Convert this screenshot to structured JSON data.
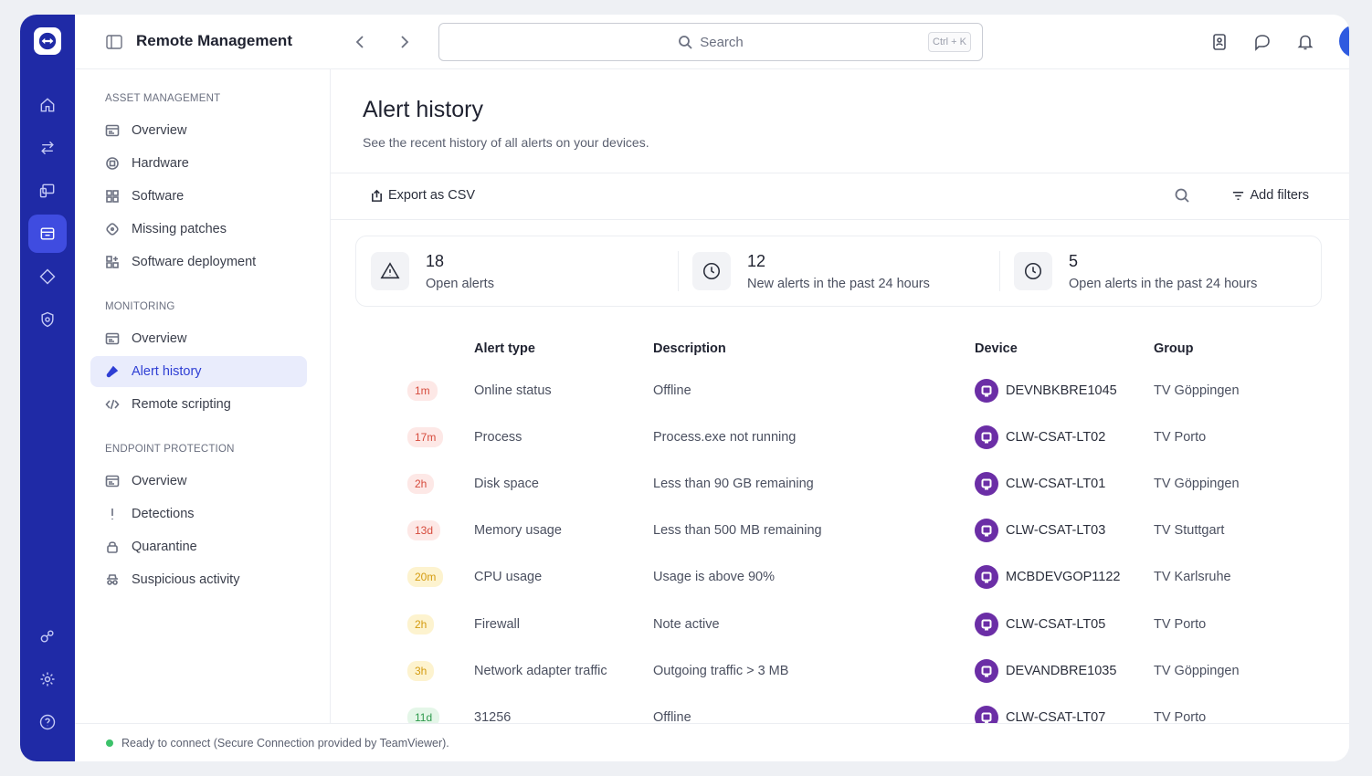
{
  "header": {
    "app_title": "Remote Management",
    "search_placeholder": "Search",
    "search_shortcut": "Ctrl + K"
  },
  "rail": {
    "items": [
      "home-icon",
      "transfer-icon",
      "devices-icon",
      "remote-management-icon",
      "tag-icon",
      "shield-icon",
      "integrations-icon",
      "settings-icon",
      "help-icon"
    ],
    "active": "remote-management-icon"
  },
  "sidebar": {
    "sections": [
      {
        "title": "ASSET MANAGEMENT",
        "items": [
          "Overview",
          "Hardware",
          "Software",
          "Missing patches",
          "Software deployment"
        ]
      },
      {
        "title": "MONITORING",
        "items": [
          "Overview",
          "Alert history",
          "Remote scripting"
        ]
      },
      {
        "title": "ENDPOINT PROTECTION",
        "items": [
          "Overview",
          "Detections",
          "Quarantine",
          "Suspicious activity"
        ]
      }
    ],
    "active_item": "Alert history"
  },
  "page": {
    "title": "Alert history",
    "subtitle": "See the recent history of all alerts on your devices."
  },
  "toolbar": {
    "export_label": "Export as CSV",
    "filters_label": "Add filters"
  },
  "stats": [
    {
      "value": "18",
      "label": "Open alerts",
      "icon": "warning-icon"
    },
    {
      "value": "12",
      "label": "New alerts in the past 24 hours",
      "icon": "clock-icon"
    },
    {
      "value": "5",
      "label": "Open alerts in the past 24 hours",
      "icon": "clock-icon"
    }
  ],
  "table": {
    "columns": [
      "Alert type",
      "Description",
      "Device",
      "Group"
    ],
    "rows": [
      {
        "age": "1m",
        "severity": "red",
        "type": "Online status",
        "description": "Offline",
        "device": "DEVNBKBRE1045",
        "group": "TV Göppingen"
      },
      {
        "age": "17m",
        "severity": "red",
        "type": "Process",
        "description": "Process.exe not running",
        "device": "CLW-CSAT-LT02",
        "group": "TV Porto"
      },
      {
        "age": "2h",
        "severity": "red",
        "type": "Disk space",
        "description": "Less than 90 GB remaining",
        "device": "CLW-CSAT-LT01",
        "group": "TV Göppingen"
      },
      {
        "age": "13d",
        "severity": "red",
        "type": "Memory usage",
        "description": "Less than 500 MB remaining",
        "device": "CLW-CSAT-LT03",
        "group": "TV Stuttgart"
      },
      {
        "age": "20m",
        "severity": "yellow",
        "type": "CPU usage",
        "description": "Usage is above 90%",
        "device": "MCBDEVGOP1122",
        "group": "TV Karlsruhe"
      },
      {
        "age": "2h",
        "severity": "yellow",
        "type": "Firewall",
        "description": "Note active",
        "device": "CLW-CSAT-LT05",
        "group": "TV Porto"
      },
      {
        "age": "3h",
        "severity": "yellow",
        "type": "Network adapter traffic",
        "description": "Outgoing traffic > 3 MB",
        "device": "DEVANDBRE1035",
        "group": "TV Göppingen"
      },
      {
        "age": "11d",
        "severity": "green",
        "type": "31256",
        "description": "Offline",
        "device": "CLW-CSAT-LT07",
        "group": "TV Porto"
      }
    ]
  },
  "status": {
    "text": "Ready to connect (Secure Connection provided by TeamViewer).",
    "color": "#3cc26a"
  },
  "colors": {
    "rail": "#1f2aa6",
    "accent": "#2f3fd4",
    "device_icon": "#6b2ea6"
  }
}
